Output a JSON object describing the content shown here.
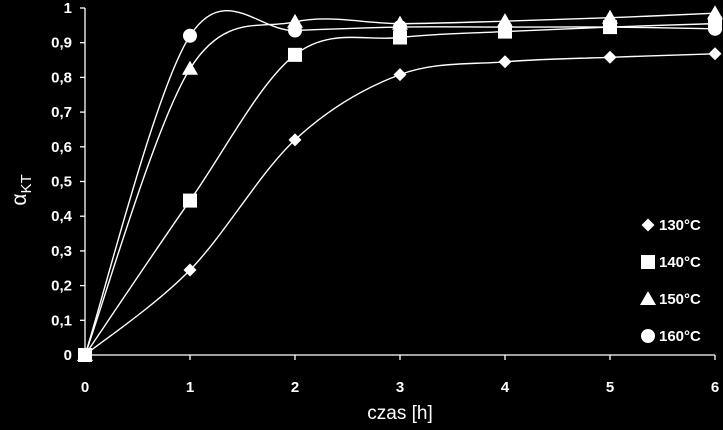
{
  "chart_data": {
    "type": "scatter",
    "title": "",
    "xlabel": "czas [h]",
    "ylabel_main": "α",
    "ylabel_sub": "KT",
    "xlim": [
      0,
      6
    ],
    "ylim": [
      0,
      1
    ],
    "x_ticks": [
      "0",
      "1",
      "2",
      "3",
      "4",
      "5",
      "6"
    ],
    "y_ticks": [
      "0",
      "0,1",
      "0,2",
      "0,3",
      "0,4",
      "0,5",
      "0,6",
      "0,7",
      "0,8",
      "0,9",
      "1"
    ],
    "grid": false,
    "legend_position": "right",
    "smooth_trendlines": true,
    "colors": {
      "background": "#000000",
      "foreground": "#ffffff"
    },
    "series": [
      {
        "name": "130°C",
        "marker": "diamond",
        "x": [
          0,
          1,
          2,
          3,
          4,
          5,
          6
        ],
        "y": [
          0,
          0.245,
          0.62,
          0.808,
          0.845,
          0.858,
          0.868
        ]
      },
      {
        "name": "140°C",
        "marker": "square",
        "x": [
          0,
          1,
          2,
          3,
          4,
          5,
          6
        ],
        "y": [
          0,
          0.445,
          0.865,
          0.915,
          0.932,
          0.945,
          0.955
        ]
      },
      {
        "name": "150°C",
        "marker": "triangle",
        "x": [
          0,
          1,
          2,
          3,
          4,
          5,
          6
        ],
        "y": [
          0,
          0.825,
          0.96,
          0.955,
          0.962,
          0.972,
          0.985
        ]
      },
      {
        "name": "160°C",
        "marker": "circle",
        "x": [
          0,
          1,
          2,
          3,
          4,
          5,
          6
        ],
        "y": [
          0,
          0.92,
          0.935,
          0.945,
          0.945,
          0.945,
          0.94
        ]
      }
    ]
  }
}
